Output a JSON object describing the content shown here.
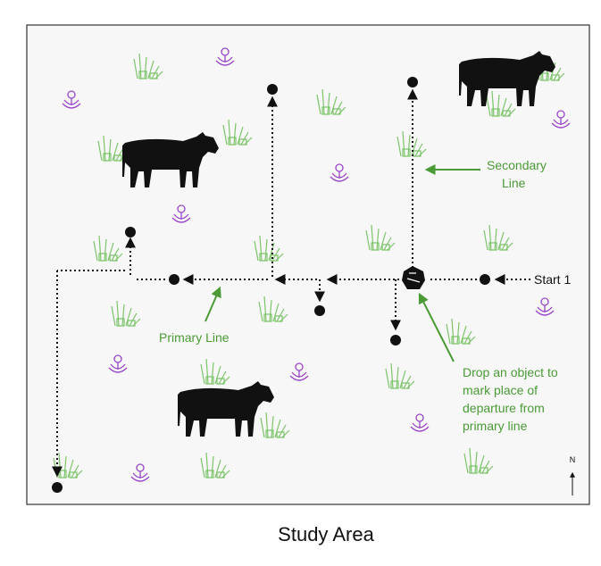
{
  "labels": {
    "start": "Start 1",
    "secondary_line": [
      "Secondary",
      "Line"
    ],
    "primary_line": "Primary Line",
    "drop_object": [
      "Drop an object to",
      "mark place of",
      "departure from",
      "primary line"
    ],
    "north": "N"
  },
  "caption": "Study Area"
}
